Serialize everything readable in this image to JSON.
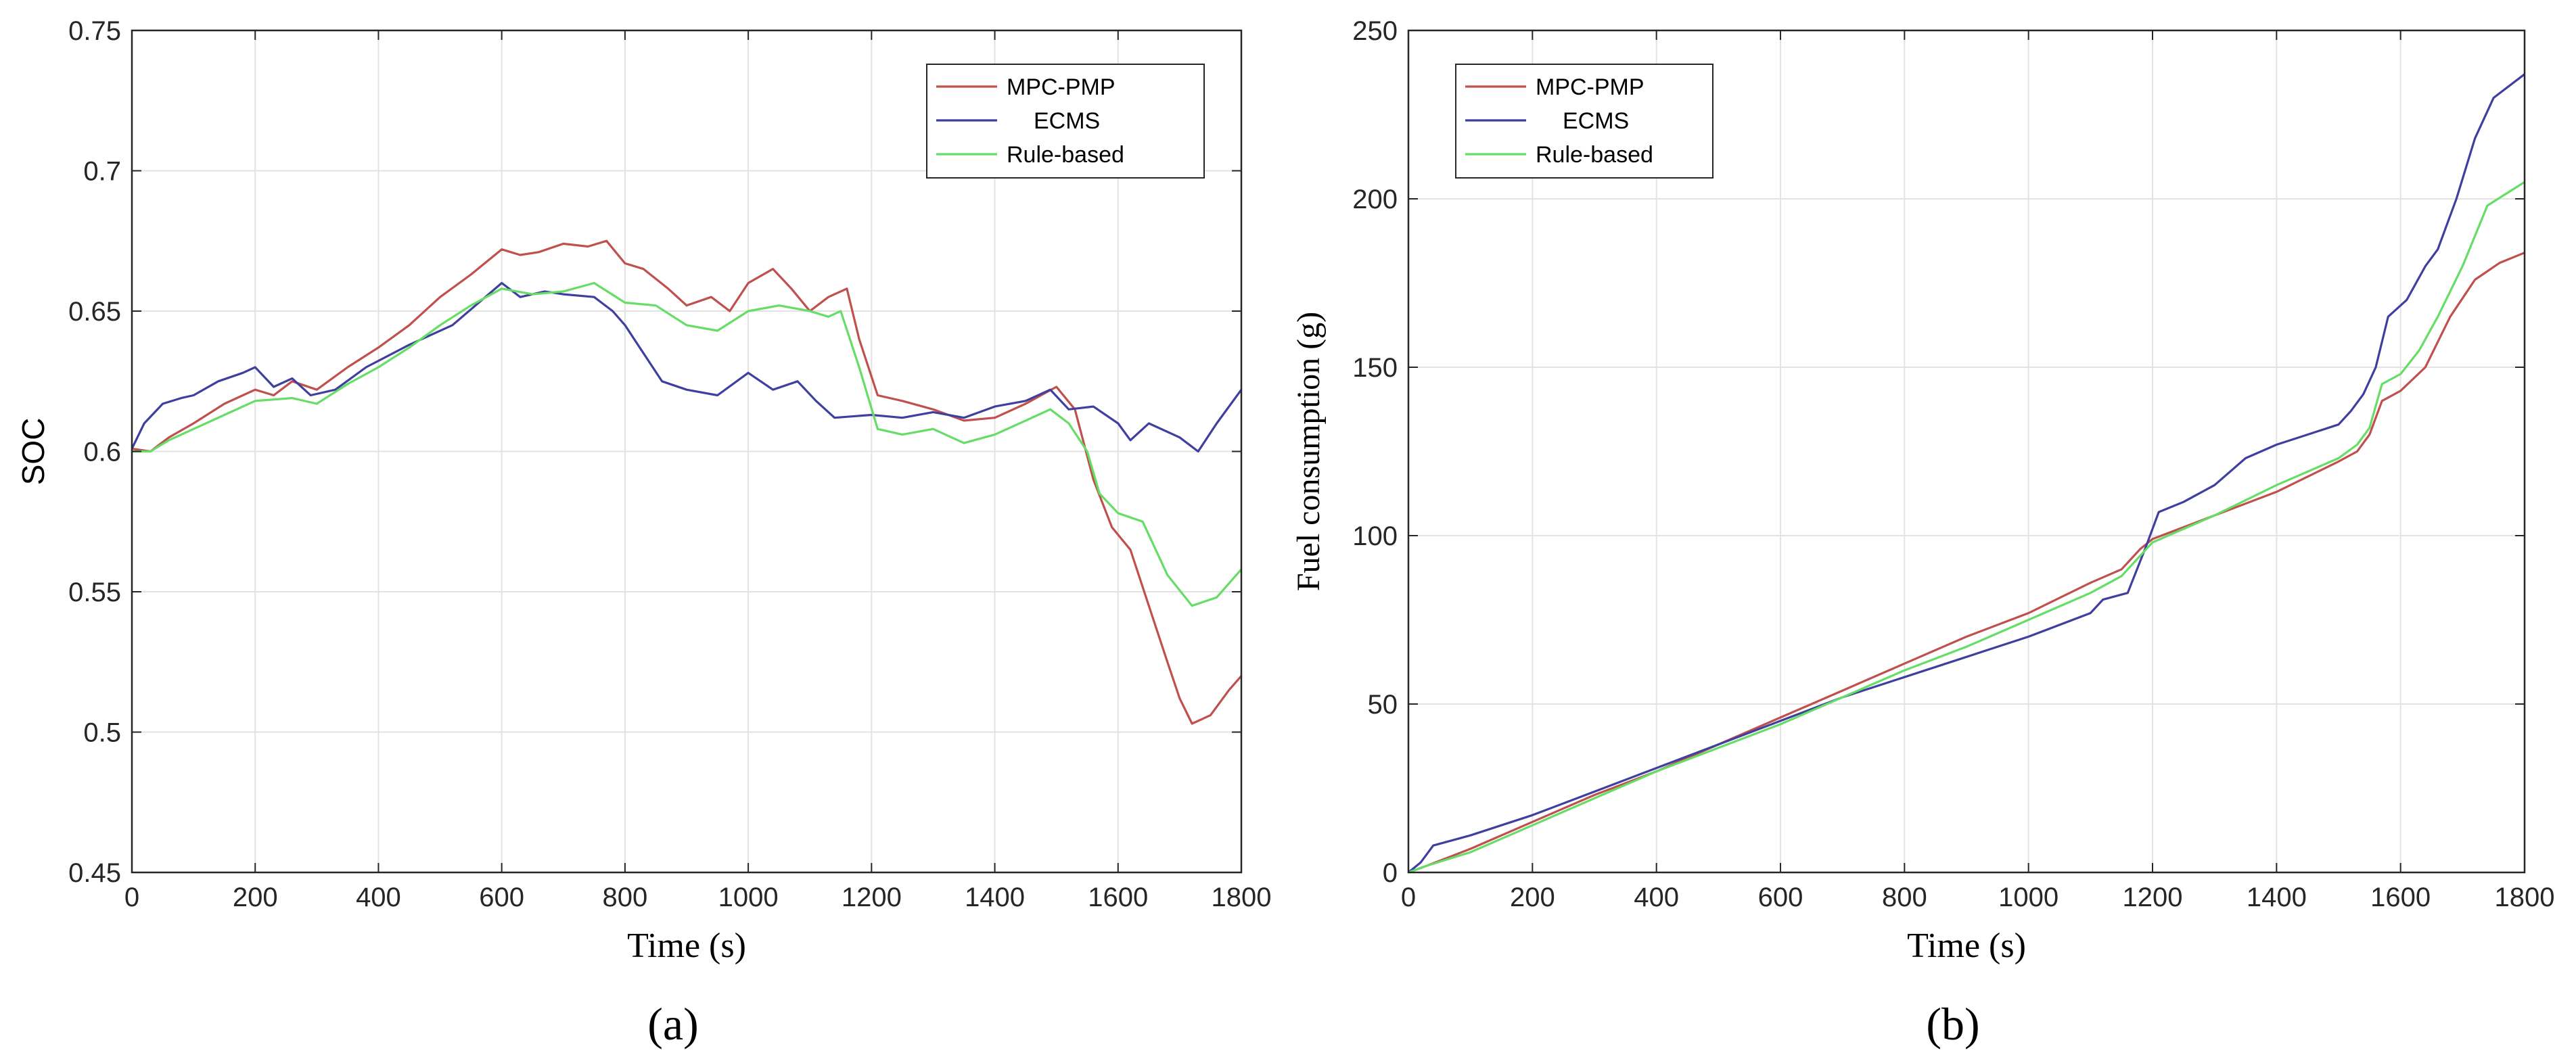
{
  "chart_data": [
    {
      "type": "line",
      "panel_label": "(a)",
      "xlabel": "Time (s)",
      "ylabel": "SOC",
      "xlim": [
        0,
        1800
      ],
      "ylim": [
        0.45,
        0.75
      ],
      "xticks": [
        0,
        200,
        400,
        600,
        800,
        1000,
        1200,
        1400,
        1600,
        1800
      ],
      "yticks": [
        0.45,
        0.5,
        0.55,
        0.6,
        0.65,
        0.7,
        0.75
      ],
      "ytick_labels": [
        "0.45",
        "0.5",
        "0.55",
        "0.6",
        "0.65",
        "0.7",
        "0.75"
      ],
      "grid": true,
      "legend_position": "top-right",
      "series": [
        {
          "name": "MPC-PMP",
          "color": "#c0504d",
          "points": [
            [
              0,
              0.601
            ],
            [
              30,
              0.6
            ],
            [
              60,
              0.605
            ],
            [
              100,
              0.61
            ],
            [
              150,
              0.617
            ],
            [
              200,
              0.622
            ],
            [
              230,
              0.62
            ],
            [
              260,
              0.625
            ],
            [
              300,
              0.622
            ],
            [
              350,
              0.63
            ],
            [
              400,
              0.637
            ],
            [
              450,
              0.645
            ],
            [
              500,
              0.655
            ],
            [
              550,
              0.663
            ],
            [
              600,
              0.672
            ],
            [
              630,
              0.67
            ],
            [
              660,
              0.671
            ],
            [
              700,
              0.674
            ],
            [
              740,
              0.673
            ],
            [
              770,
              0.675
            ],
            [
              800,
              0.667
            ],
            [
              830,
              0.665
            ],
            [
              870,
              0.658
            ],
            [
              900,
              0.652
            ],
            [
              940,
              0.655
            ],
            [
              970,
              0.65
            ],
            [
              1000,
              0.66
            ],
            [
              1040,
              0.665
            ],
            [
              1070,
              0.658
            ],
            [
              1100,
              0.65
            ],
            [
              1130,
              0.655
            ],
            [
              1160,
              0.658
            ],
            [
              1180,
              0.64
            ],
            [
              1210,
              0.62
            ],
            [
              1250,
              0.618
            ],
            [
              1300,
              0.615
            ],
            [
              1350,
              0.611
            ],
            [
              1400,
              0.612
            ],
            [
              1450,
              0.617
            ],
            [
              1500,
              0.623
            ],
            [
              1530,
              0.615
            ],
            [
              1560,
              0.59
            ],
            [
              1590,
              0.573
            ],
            [
              1620,
              0.565
            ],
            [
              1650,
              0.545
            ],
            [
              1680,
              0.525
            ],
            [
              1700,
              0.512
            ],
            [
              1720,
              0.503
            ],
            [
              1750,
              0.506
            ],
            [
              1780,
              0.515
            ],
            [
              1800,
              0.52
            ]
          ]
        },
        {
          "name": "ECMS",
          "color": "#3f3f9f",
          "points": [
            [
              0,
              0.601
            ],
            [
              20,
              0.61
            ],
            [
              50,
              0.617
            ],
            [
              80,
              0.619
            ],
            [
              100,
              0.62
            ],
            [
              140,
              0.625
            ],
            [
              180,
              0.628
            ],
            [
              200,
              0.63
            ],
            [
              230,
              0.623
            ],
            [
              260,
              0.626
            ],
            [
              290,
              0.62
            ],
            [
              330,
              0.622
            ],
            [
              380,
              0.63
            ],
            [
              450,
              0.638
            ],
            [
              520,
              0.645
            ],
            [
              600,
              0.66
            ],
            [
              630,
              0.655
            ],
            [
              670,
              0.657
            ],
            [
              700,
              0.656
            ],
            [
              750,
              0.655
            ],
            [
              780,
              0.65
            ],
            [
              800,
              0.645
            ],
            [
              830,
              0.635
            ],
            [
              860,
              0.625
            ],
            [
              900,
              0.622
            ],
            [
              950,
              0.62
            ],
            [
              1000,
              0.628
            ],
            [
              1040,
              0.622
            ],
            [
              1080,
              0.625
            ],
            [
              1110,
              0.618
            ],
            [
              1140,
              0.612
            ],
            [
              1200,
              0.613
            ],
            [
              1250,
              0.612
            ],
            [
              1300,
              0.614
            ],
            [
              1350,
              0.612
            ],
            [
              1400,
              0.616
            ],
            [
              1450,
              0.618
            ],
            [
              1490,
              0.622
            ],
            [
              1520,
              0.615
            ],
            [
              1560,
              0.616
            ],
            [
              1600,
              0.61
            ],
            [
              1620,
              0.604
            ],
            [
              1650,
              0.61
            ],
            [
              1700,
              0.605
            ],
            [
              1730,
              0.6
            ],
            [
              1760,
              0.61
            ],
            [
              1800,
              0.622
            ]
          ]
        },
        {
          "name": "Rule-based",
          "color": "#66dd66",
          "points": [
            [
              0,
              0.6
            ],
            [
              30,
              0.6
            ],
            [
              60,
              0.604
            ],
            [
              100,
              0.608
            ],
            [
              150,
              0.613
            ],
            [
              200,
              0.618
            ],
            [
              260,
              0.619
            ],
            [
              300,
              0.617
            ],
            [
              350,
              0.624
            ],
            [
              400,
              0.63
            ],
            [
              450,
              0.637
            ],
            [
              500,
              0.645
            ],
            [
              550,
              0.652
            ],
            [
              600,
              0.658
            ],
            [
              650,
              0.656
            ],
            [
              700,
              0.657
            ],
            [
              750,
              0.66
            ],
            [
              800,
              0.653
            ],
            [
              850,
              0.652
            ],
            [
              900,
              0.645
            ],
            [
              950,
              0.643
            ],
            [
              1000,
              0.65
            ],
            [
              1050,
              0.652
            ],
            [
              1100,
              0.65
            ],
            [
              1130,
              0.648
            ],
            [
              1150,
              0.65
            ],
            [
              1180,
              0.63
            ],
            [
              1210,
              0.608
            ],
            [
              1250,
              0.606
            ],
            [
              1300,
              0.608
            ],
            [
              1330,
              0.605
            ],
            [
              1350,
              0.603
            ],
            [
              1400,
              0.606
            ],
            [
              1450,
              0.611
            ],
            [
              1490,
              0.615
            ],
            [
              1520,
              0.61
            ],
            [
              1550,
              0.6
            ],
            [
              1570,
              0.585
            ],
            [
              1600,
              0.578
            ],
            [
              1640,
              0.575
            ],
            [
              1680,
              0.556
            ],
            [
              1720,
              0.545
            ],
            [
              1760,
              0.548
            ],
            [
              1800,
              0.558
            ]
          ]
        }
      ]
    },
    {
      "type": "line",
      "panel_label": "(b)",
      "xlabel": "Time (s)",
      "ylabel": "Fuel consumption  (g)",
      "xlim": [
        0,
        1800
      ],
      "ylim": [
        0,
        250
      ],
      "xticks": [
        0,
        200,
        400,
        600,
        800,
        1000,
        1200,
        1400,
        1600,
        1800
      ],
      "yticks": [
        0,
        50,
        100,
        150,
        200,
        250
      ],
      "ytick_labels": [
        "0",
        "50",
        "100",
        "150",
        "200",
        "250"
      ],
      "grid": true,
      "legend_position": "top-left",
      "series": [
        {
          "name": "MPC-PMP",
          "color": "#c0504d",
          "points": [
            [
              0,
              0
            ],
            [
              30,
              2
            ],
            [
              100,
              7
            ],
            [
              200,
              15
            ],
            [
              300,
              23
            ],
            [
              400,
              30
            ],
            [
              500,
              38
            ],
            [
              600,
              46
            ],
            [
              700,
              54
            ],
            [
              800,
              62
            ],
            [
              900,
              70
            ],
            [
              1000,
              77
            ],
            [
              1100,
              86
            ],
            [
              1150,
              90
            ],
            [
              1180,
              96
            ],
            [
              1200,
              99
            ],
            [
              1300,
              106
            ],
            [
              1400,
              113
            ],
            [
              1500,
              122
            ],
            [
              1530,
              125
            ],
            [
              1550,
              130
            ],
            [
              1570,
              140
            ],
            [
              1600,
              143
            ],
            [
              1640,
              150
            ],
            [
              1680,
              165
            ],
            [
              1720,
              176
            ],
            [
              1760,
              181
            ],
            [
              1800,
              184
            ]
          ]
        },
        {
          "name": "ECMS",
          "color": "#3f3f9f",
          "points": [
            [
              0,
              0
            ],
            [
              20,
              3
            ],
            [
              40,
              8
            ],
            [
              100,
              11
            ],
            [
              200,
              17
            ],
            [
              300,
              24
            ],
            [
              400,
              31
            ],
            [
              500,
              38
            ],
            [
              600,
              45
            ],
            [
              700,
              52
            ],
            [
              800,
              58
            ],
            [
              900,
              64
            ],
            [
              1000,
              70
            ],
            [
              1100,
              77
            ],
            [
              1120,
              81
            ],
            [
              1160,
              83
            ],
            [
              1190,
              97
            ],
            [
              1210,
              107
            ],
            [
              1250,
              110
            ],
            [
              1300,
              115
            ],
            [
              1350,
              123
            ],
            [
              1400,
              127
            ],
            [
              1450,
              130
            ],
            [
              1500,
              133
            ],
            [
              1520,
              137
            ],
            [
              1540,
              142
            ],
            [
              1560,
              150
            ],
            [
              1580,
              165
            ],
            [
              1610,
              170
            ],
            [
              1640,
              180
            ],
            [
              1660,
              185
            ],
            [
              1690,
              200
            ],
            [
              1720,
              218
            ],
            [
              1750,
              230
            ],
            [
              1800,
              237
            ]
          ]
        },
        {
          "name": "Rule-based",
          "color": "#66dd66",
          "points": [
            [
              0,
              0
            ],
            [
              30,
              2
            ],
            [
              100,
              6
            ],
            [
              200,
              14
            ],
            [
              300,
              22
            ],
            [
              400,
              30
            ],
            [
              500,
              37
            ],
            [
              600,
              44
            ],
            [
              700,
              52
            ],
            [
              800,
              60
            ],
            [
              900,
              67
            ],
            [
              1000,
              75
            ],
            [
              1100,
              83
            ],
            [
              1150,
              88
            ],
            [
              1200,
              98
            ],
            [
              1300,
              106
            ],
            [
              1400,
              115
            ],
            [
              1500,
              123
            ],
            [
              1530,
              127
            ],
            [
              1550,
              132
            ],
            [
              1570,
              145
            ],
            [
              1600,
              148
            ],
            [
              1630,
              155
            ],
            [
              1660,
              165
            ],
            [
              1700,
              180
            ],
            [
              1740,
              198
            ],
            [
              1800,
              205
            ]
          ]
        }
      ]
    }
  ]
}
